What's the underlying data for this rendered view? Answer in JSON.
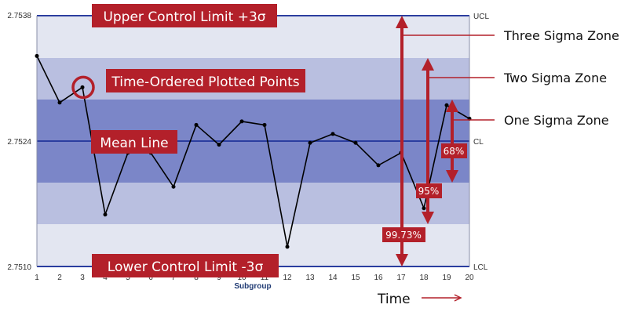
{
  "chart_data": {
    "type": "line",
    "xlabel": "Subgroup",
    "x": [
      1,
      2,
      3,
      4,
      5,
      6,
      7,
      8,
      9,
      10,
      11,
      12,
      13,
      14,
      15,
      16,
      17,
      18,
      19,
      20
    ],
    "y": [
      2.75335,
      2.75283,
      2.753,
      2.75158,
      2.75227,
      2.75227,
      2.75189,
      2.75258,
      2.75236,
      2.75262,
      2.75258,
      2.75122,
      2.75238,
      2.75248,
      2.75238,
      2.75213,
      2.75227,
      2.75165,
      2.7528,
      2.75265
    ],
    "ylim": [
      2.751,
      2.7538
    ],
    "y_ticks": [
      "2.7510",
      "2.7524",
      "2.7538"
    ],
    "mean": 2.7524,
    "ucl": 2.7538,
    "lcl": 2.751,
    "right_labels": {
      "ucl": "UCL",
      "cl": "CL",
      "lcl": "LCL"
    },
    "highlighted_point": 3,
    "zones": {
      "one_sigma": "One Sigma Zone",
      "two_sigma": "Two Sigma Zone",
      "three_sigma": "Three Sigma Zone"
    },
    "percent_labels": {
      "one_sigma": "68%",
      "two_sigma": "95%",
      "three_sigma": "99.73%"
    },
    "annotations": {
      "ucl": "Upper Control Limit +3σ",
      "lcl": "Lower Control Limit -3σ",
      "mean": "Mean Line",
      "points": "Time-Ordered Plotted Points",
      "time": "Time"
    },
    "colors": {
      "zone_outer": "#e3e6f1",
      "zone_two": "#b9bfe0",
      "zone_one": "#7b86c8",
      "control_line": "#2b3e9f",
      "callout": "#b3202a",
      "series": "#000000"
    }
  }
}
